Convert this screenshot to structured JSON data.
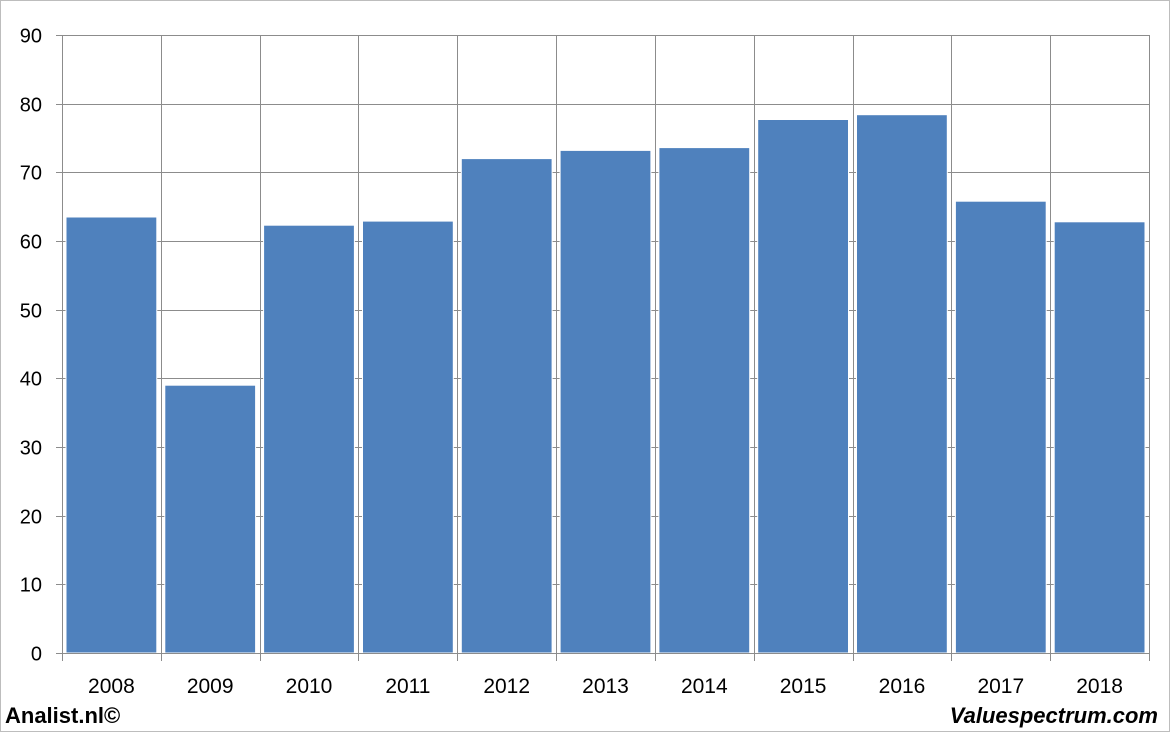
{
  "chart_data": {
    "type": "bar",
    "categories": [
      "2008",
      "2009",
      "2010",
      "2011",
      "2012",
      "2013",
      "2014",
      "2015",
      "2016",
      "2017",
      "2018"
    ],
    "values": [
      63.5,
      39.0,
      62.3,
      62.9,
      72.0,
      73.2,
      73.6,
      77.7,
      78.4,
      65.8,
      62.8
    ],
    "ylim": [
      0,
      90
    ],
    "yticks": [
      0,
      10,
      20,
      30,
      40,
      50,
      60,
      70,
      80,
      90
    ],
    "title": "",
    "xlabel": "",
    "ylabel": "",
    "grid": true,
    "bar_color": "#4f81bd",
    "grid_color": "#8c8c8c"
  },
  "footer": {
    "left": "Analist.nl©",
    "right": "Valuespectrum.com"
  }
}
